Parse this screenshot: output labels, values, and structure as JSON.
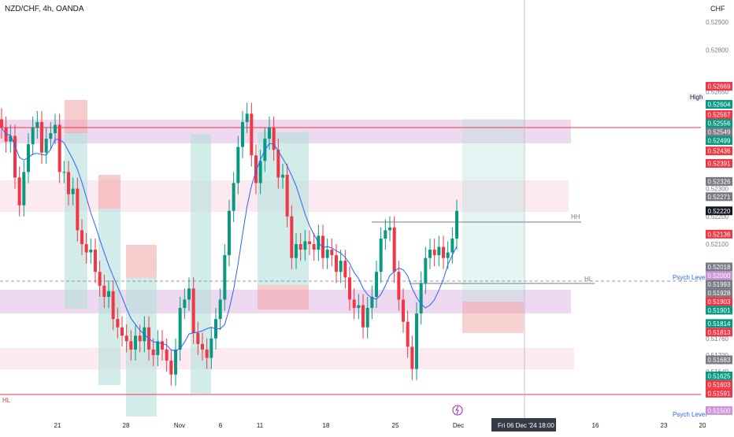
{
  "symbol": "NZD/CHF, 4h, OANDA",
  "currency": "CHF",
  "high_label": "High",
  "crosshair_time": "Fri 06 Dec '24   18:00",
  "colors": {
    "up": "#089981",
    "down": "#f23645",
    "ma": "#2962ff",
    "purple_zone": "#ce93d8",
    "pink_zone": "#f8bbd0",
    "teal_zone": "#b2dfdb",
    "red_zone": "#ef9a9a",
    "red_line": "#f23645"
  },
  "annotations": {
    "hh": "HH",
    "hl_right": "HL",
    "hl_left": "HL",
    "psych_level_1": "Psych Level",
    "psych_level_2": "Psych Level"
  },
  "chart_data": {
    "type": "candlestick",
    "title": "NZD/CHF, 4h, OANDA",
    "ylim": [
      0.5147,
      0.5298
    ],
    "y_ticks": [
      "0.52900",
      "0.52800",
      "0.52650",
      "0.52300",
      "0.52200",
      "0.52100",
      "0.51760",
      "0.51700",
      "0.51640"
    ],
    "x_ticks": [
      "21",
      "28",
      "Nov",
      "6",
      "11",
      "18",
      "25",
      "Dec",
      "16",
      "23",
      "20"
    ],
    "price_tags": [
      {
        "value": "0.52669",
        "color": "#f23645"
      },
      {
        "value": "0.52604",
        "color": "#089981"
      },
      {
        "value": "0.52567",
        "color": "#f23645"
      },
      {
        "value": "0.52556",
        "color": "#089981"
      },
      {
        "value": "0.52549",
        "color": "#787b86"
      },
      {
        "value": "0.52499",
        "color": "#089981"
      },
      {
        "value": "0.52436",
        "color": "#f23645"
      },
      {
        "value": "0.52391",
        "color": "#f23645"
      },
      {
        "value": "0.52326",
        "color": "#787b86"
      },
      {
        "value": "0.52271",
        "color": "#787b86"
      },
      {
        "value": "0.52220",
        "color": "#131722"
      },
      {
        "value": "0.52136",
        "color": "#f23645"
      },
      {
        "value": "0.52018",
        "color": "#787b86"
      },
      {
        "value": "0.52000",
        "color": "#ce93d8"
      },
      {
        "value": "0.51993",
        "color": "#787b86"
      },
      {
        "value": "0.51928",
        "color": "#787b86"
      },
      {
        "value": "0.51903",
        "color": "#f23645"
      },
      {
        "value": "0.51901",
        "color": "#089981"
      },
      {
        "value": "0.51814",
        "color": "#089981"
      },
      {
        "value": "0.51813",
        "color": "#f23645"
      },
      {
        "value": "0.51683",
        "color": "#787b86"
      },
      {
        "value": "0.51625",
        "color": "#089981"
      },
      {
        "value": "0.51603",
        "color": "#f23645"
      },
      {
        "value": "0.51591",
        "color": "#f23645"
      },
      {
        "value": "0.51500",
        "color": "#ce93d8"
      }
    ],
    "key_levels": [
      {
        "name": "resistance line",
        "value": 0.5259
      },
      {
        "name": "support line",
        "value": 0.5159
      },
      {
        "name": "HH",
        "value": 0.5222
      },
      {
        "name": "HL",
        "value": 0.5202
      }
    ],
    "close_path": [
      0.5252,
      0.5247,
      0.5249,
      0.5234,
      0.5224,
      0.5236,
      0.5246,
      0.5252,
      0.5254,
      0.5243,
      0.5248,
      0.525,
      0.5253,
      0.5236,
      0.5236,
      0.5228,
      0.523,
      0.5215,
      0.521,
      0.5207,
      0.5208,
      0.52,
      0.5195,
      0.5191,
      0.5193,
      0.5183,
      0.518,
      0.5177,
      0.5175,
      0.5172,
      0.5177,
      0.5175,
      0.518,
      0.5172,
      0.517,
      0.5175,
      0.5172,
      0.5168,
      0.5163,
      0.5172,
      0.5187,
      0.519,
      0.5194,
      0.5178,
      0.5174,
      0.5172,
      0.5169,
      0.5176,
      0.5183,
      0.519,
      0.5206,
      0.5222,
      0.5232,
      0.5245,
      0.5254,
      0.5257,
      0.5242,
      0.5232,
      0.524,
      0.5248,
      0.5252,
      0.5244,
      0.5234,
      0.5235,
      0.522,
      0.5205,
      0.521,
      0.5208,
      0.5211,
      0.521,
      0.5208,
      0.5213,
      0.5205,
      0.5208,
      0.5206,
      0.52,
      0.5204,
      0.5198,
      0.519,
      0.5187,
      0.5188,
      0.518,
      0.5187,
      0.5191,
      0.52,
      0.5212,
      0.5215,
      0.5216,
      0.52,
      0.519,
      0.5182,
      0.5173,
      0.5165,
      0.5185,
      0.5196,
      0.5205,
      0.5208,
      0.5206,
      0.5209,
      0.5205,
      0.5207,
      0.5212,
      0.5222
    ]
  }
}
